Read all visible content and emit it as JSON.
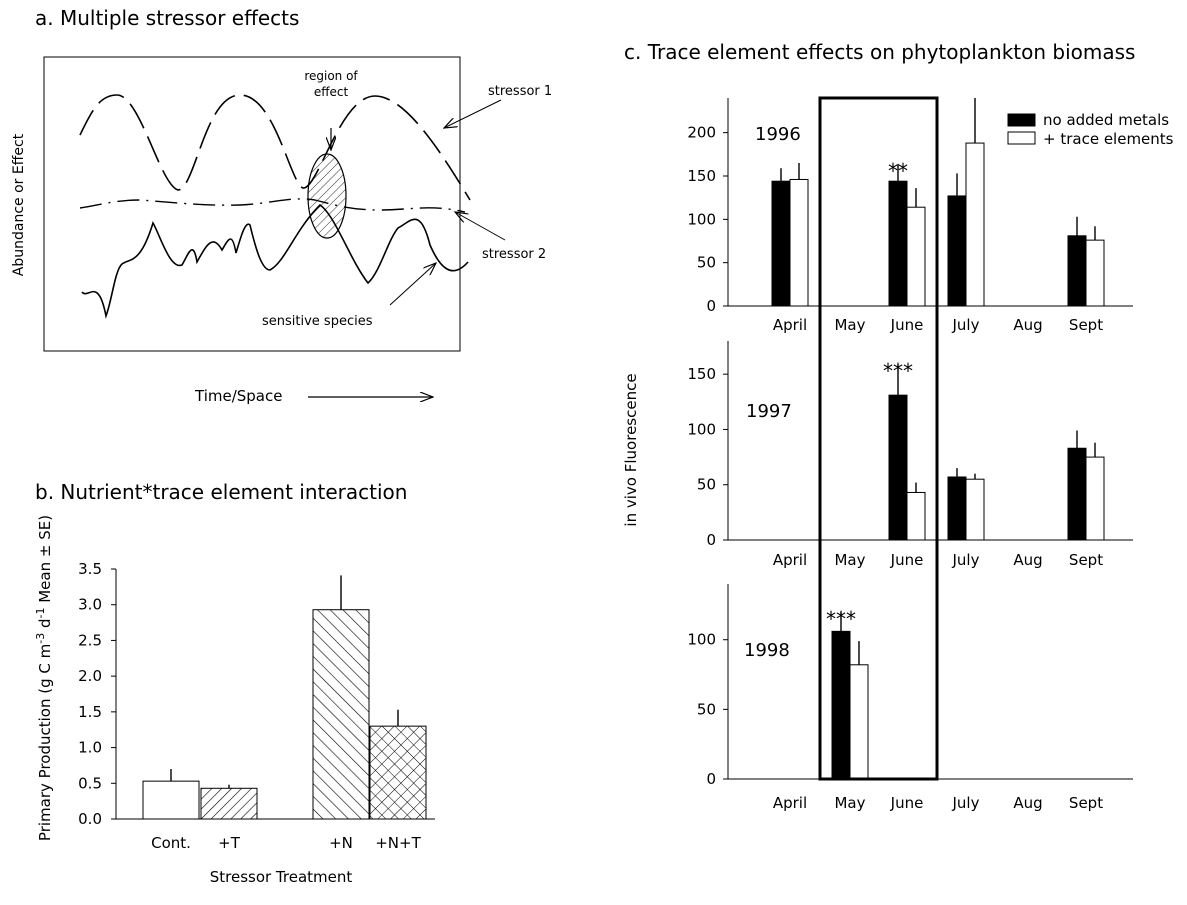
{
  "panel_a": {
    "title": "a. Multiple stressor effects",
    "ylabel": "Abundance or Effect",
    "xlabel": "Time/Space",
    "labels": {
      "region": [
        "region of",
        "effect"
      ],
      "stressor1": "stressor 1",
      "stressor2": "stressor 2",
      "sensitive": "sensitive species"
    }
  },
  "panel_b": {
    "title": "b. Nutrient*trace element interaction",
    "xlabel": "Stressor Treatment",
    "ylabel": "Primary Production (g C m-3 d-1   Mean ± SE)"
  },
  "panel_c": {
    "title": "c. Trace element effects on phytoplankton biomass",
    "ylabel": "in vivo  Fluorescence",
    "legend": [
      "no added metals",
      "+ trace elements"
    ]
  },
  "colors": {
    "ink": "#000000",
    "background": "#ffffff",
    "legend_filled": "#000000",
    "legend_open": "#ffffff"
  },
  "chart_data": [
    {
      "type": "bar",
      "panel": "b",
      "title": "b. Nutrient*trace element interaction",
      "xlabel": "Stressor Treatment",
      "ylabel": "Primary Production (g C m-3 d-1   Mean ± SE)",
      "categories": [
        "Cont.",
        "+T",
        "+N",
        "+N+T"
      ],
      "values": [
        0.53,
        0.43,
        2.93,
        1.3
      ],
      "errors": [
        0.17,
        0.05,
        0.48,
        0.23
      ],
      "patterns": [
        "none",
        "diagonal",
        "back-diagonal",
        "crosshatch"
      ],
      "ylim": [
        0,
        3.5
      ],
      "yticks": [
        "0.0",
        "0.5",
        "1.0",
        "1.5",
        "2.0",
        "2.5",
        "3.0",
        "3.5"
      ]
    },
    {
      "type": "bar",
      "panel": "c",
      "title": "c. Trace element effects on phytoplankton biomass",
      "ylabel": "in vivo  Fluorescence",
      "categories": [
        "April",
        "May",
        "June",
        "July",
        "Aug",
        "Sept"
      ],
      "legend": "top-right",
      "highlight_months": [
        "May",
        "June"
      ],
      "subplots": [
        {
          "year": "1996",
          "ylim": [
            0,
            240
          ],
          "yticks": [
            "0",
            "50",
            "100",
            "150",
            "200"
          ],
          "series": [
            {
              "name": "no added metals",
              "values": [
                144,
                null,
                144,
                127,
                null,
                81
              ],
              "errors": [
                15,
                null,
                20,
                26,
                null,
                22
              ]
            },
            {
              "name": "+ trace elements",
              "values": [
                146,
                null,
                114,
                188,
                null,
                76
              ],
              "errors": [
                19,
                null,
                22,
                52,
                null,
                16
              ]
            }
          ],
          "annotations": [
            {
              "category": "June",
              "text": "**"
            }
          ]
        },
        {
          "year": "1997",
          "ylim": [
            0,
            180
          ],
          "yticks": [
            "0",
            "50",
            "100",
            "150"
          ],
          "series": [
            {
              "name": "no added metals",
              "values": [
                null,
                null,
                131,
                57,
                null,
                83
              ],
              "errors": [
                null,
                null,
                28,
                8,
                null,
                16
              ]
            },
            {
              "name": "+ trace elements",
              "values": [
                null,
                null,
                43,
                55,
                null,
                75
              ],
              "errors": [
                null,
                null,
                9,
                5,
                null,
                13
              ]
            }
          ],
          "annotations": [
            {
              "category": "June",
              "text": "***"
            }
          ]
        },
        {
          "year": "1998",
          "ylim": [
            0,
            140
          ],
          "yticks": [
            "0",
            "50",
            "100"
          ],
          "series": [
            {
              "name": "no added metals",
              "values": [
                null,
                106,
                null,
                null,
                null,
                null
              ],
              "errors": [
                null,
                14,
                null,
                null,
                null,
                null
              ]
            },
            {
              "name": "+ trace elements",
              "values": [
                null,
                82,
                null,
                null,
                null,
                null
              ],
              "errors": [
                null,
                17,
                null,
                null,
                null,
                null
              ]
            }
          ],
          "annotations": [
            {
              "category": "May",
              "text": "***"
            }
          ]
        }
      ]
    }
  ]
}
